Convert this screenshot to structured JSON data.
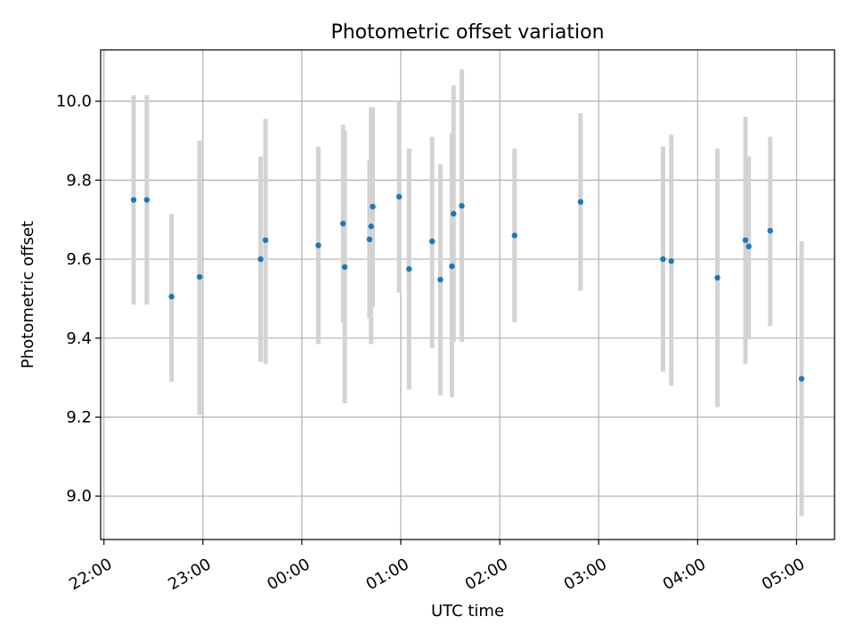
{
  "chart_data": {
    "type": "scatter",
    "title": "Photometric offset variation",
    "xlabel": "UTC time",
    "ylabel": "Photometric offset",
    "x_unit": "UTC hours",
    "xlim": [
      "21:58",
      "05:23"
    ],
    "ylim": [
      8.89,
      10.13
    ],
    "x_ticks": [
      "22:00",
      "23:00",
      "00:00",
      "01:00",
      "02:00",
      "03:00",
      "04:00",
      "05:00"
    ],
    "y_ticks": [
      "9.0",
      "9.2",
      "9.4",
      "9.6",
      "9.8",
      "10.0"
    ],
    "grid": true,
    "colors": {
      "points": "#1f77b4",
      "errorbars": "#d3d3d3",
      "grid": "#b0b0b0"
    },
    "points": [
      {
        "x": "22:18",
        "y": 9.75,
        "lo": 9.485,
        "hi": 10.015
      },
      {
        "x": "22:26",
        "y": 9.75,
        "lo": 9.485,
        "hi": 10.015
      },
      {
        "x": "22:41",
        "y": 9.505,
        "lo": 9.29,
        "hi": 9.715
      },
      {
        "x": "22:58",
        "y": 9.555,
        "lo": 9.205,
        "hi": 9.9
      },
      {
        "x": "23:35",
        "y": 9.6,
        "lo": 9.34,
        "hi": 9.86
      },
      {
        "x": "23:38",
        "y": 9.648,
        "lo": 9.335,
        "hi": 9.955
      },
      {
        "x": "00:10",
        "y": 9.635,
        "lo": 9.385,
        "hi": 9.885
      },
      {
        "x": "00:25",
        "y": 9.69,
        "lo": 9.44,
        "hi": 9.94
      },
      {
        "x": "00:26",
        "y": 9.58,
        "lo": 9.235,
        "hi": 9.925
      },
      {
        "x": "00:41",
        "y": 9.65,
        "lo": 9.45,
        "hi": 9.85
      },
      {
        "x": "00:42",
        "y": 9.683,
        "lo": 9.385,
        "hi": 9.985
      },
      {
        "x": "00:43",
        "y": 9.733,
        "lo": 9.48,
        "hi": 9.985
      },
      {
        "x": "00:59",
        "y": 9.758,
        "lo": 9.515,
        "hi": 10.0
      },
      {
        "x": "01:05",
        "y": 9.575,
        "lo": 9.27,
        "hi": 9.88
      },
      {
        "x": "01:19",
        "y": 9.645,
        "lo": 9.375,
        "hi": 9.91
      },
      {
        "x": "01:24",
        "y": 9.548,
        "lo": 9.255,
        "hi": 9.84
      },
      {
        "x": "01:31",
        "y": 9.582,
        "lo": 9.25,
        "hi": 9.92
      },
      {
        "x": "01:32",
        "y": 9.715,
        "lo": 9.39,
        "hi": 10.04
      },
      {
        "x": "01:37",
        "y": 9.735,
        "lo": 9.39,
        "hi": 10.08
      },
      {
        "x": "02:09",
        "y": 9.66,
        "lo": 9.44,
        "hi": 9.88
      },
      {
        "x": "02:49",
        "y": 9.745,
        "lo": 9.52,
        "hi": 9.97
      },
      {
        "x": "03:39",
        "y": 9.6,
        "lo": 9.315,
        "hi": 9.885
      },
      {
        "x": "03:44",
        "y": 9.595,
        "lo": 9.28,
        "hi": 9.915
      },
      {
        "x": "04:12",
        "y": 9.553,
        "lo": 9.225,
        "hi": 9.88
      },
      {
        "x": "04:29",
        "y": 9.648,
        "lo": 9.335,
        "hi": 9.96
      },
      {
        "x": "04:31",
        "y": 9.632,
        "lo": 9.4,
        "hi": 9.86
      },
      {
        "x": "04:44",
        "y": 9.672,
        "lo": 9.43,
        "hi": 9.91
      },
      {
        "x": "05:03",
        "y": 9.297,
        "lo": 8.95,
        "hi": 9.645
      }
    ]
  }
}
